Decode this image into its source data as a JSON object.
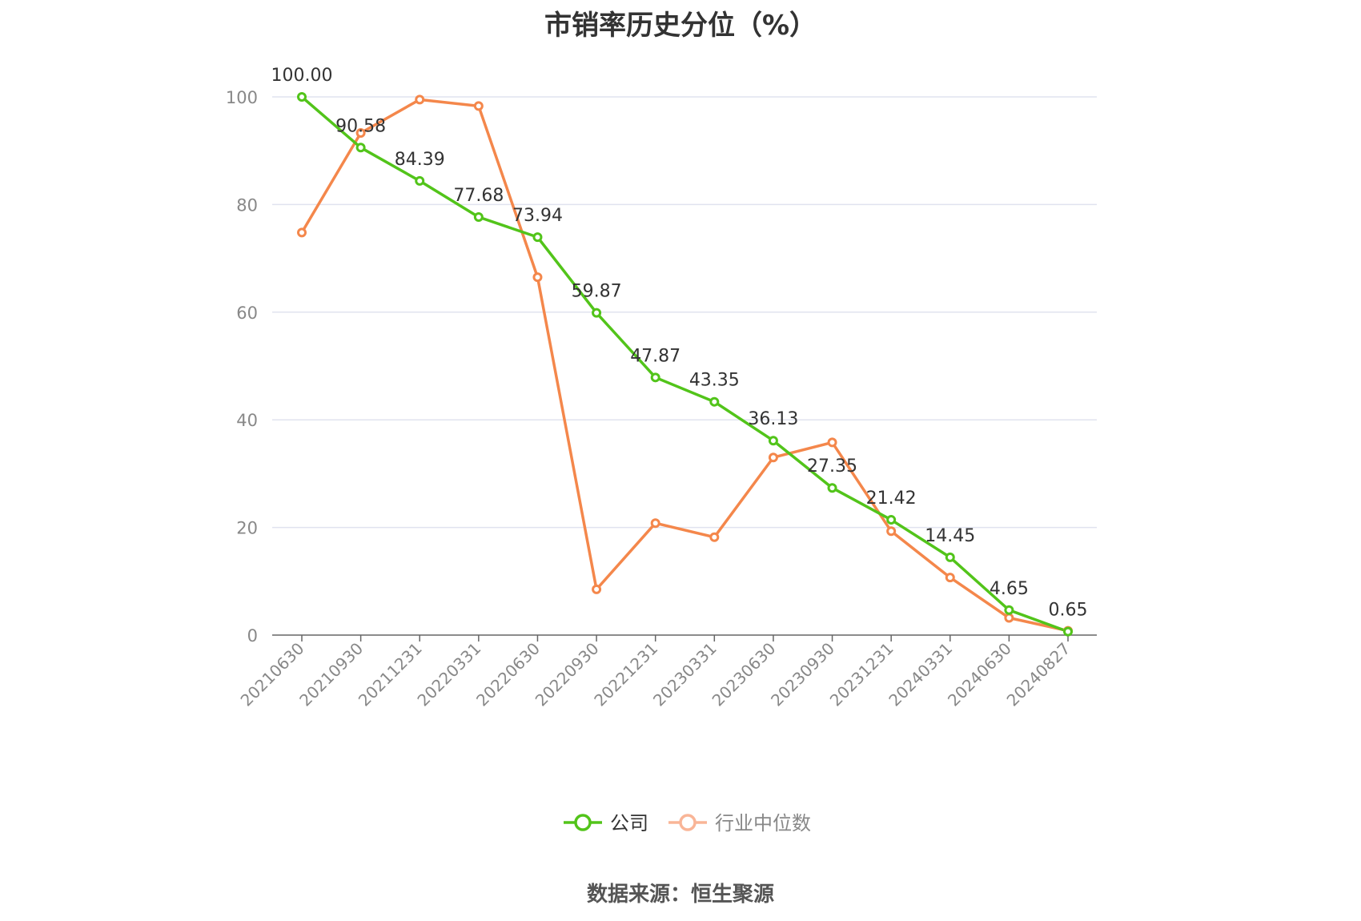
{
  "title": "市销率历史分位（%）",
  "source": "数据来源：恒生聚源",
  "colors": {
    "company": "#52c41a",
    "industry": "#f4874b",
    "grid": "#e0e3ef",
    "axis": "#666666"
  },
  "chart_data": {
    "type": "line",
    "title": "市销率历史分位（%）",
    "categories": [
      "20210630",
      "20210930",
      "20211231",
      "20220331",
      "20220630",
      "20220930",
      "20221231",
      "20230331",
      "20230630",
      "20230930",
      "20231231",
      "20240331",
      "20240630",
      "20240827"
    ],
    "ylim": [
      0,
      100
    ],
    "yticks": [
      0,
      20,
      40,
      60,
      80,
      100
    ],
    "grid": true,
    "legend_position": "bottom",
    "series": [
      {
        "name": "公司",
        "color": "#52c41a",
        "values": [
          100.0,
          90.58,
          84.39,
          77.68,
          73.94,
          59.87,
          47.87,
          43.35,
          36.13,
          27.35,
          21.42,
          14.45,
          4.65,
          0.65
        ],
        "labels": [
          "100.00",
          "90.58",
          "84.39",
          "77.68",
          "73.94",
          "59.87",
          "47.87",
          "43.35",
          "36.13",
          "27.35",
          "21.42",
          "14.45",
          "4.65",
          "0.65"
        ]
      },
      {
        "name": "行业中位数",
        "color": "#f4874b",
        "values": [
          74.8,
          93.3,
          99.5,
          98.3,
          66.5,
          8.5,
          20.8,
          18.2,
          33.0,
          35.8,
          19.3,
          10.7,
          3.2,
          0.8
        ]
      }
    ]
  }
}
